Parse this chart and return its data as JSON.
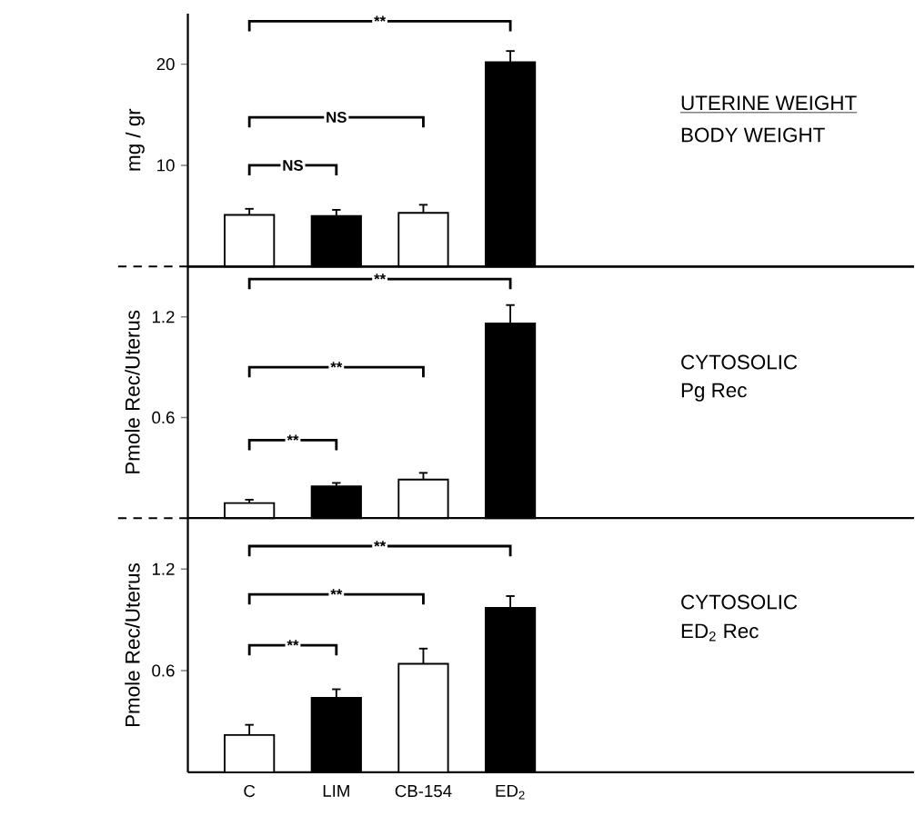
{
  "chart_data": [
    {
      "type": "bar",
      "ylabel": "mg / gr",
      "categories": [
        null,
        null,
        null,
        null
      ],
      "values": [
        5.1,
        5.0,
        5.3,
        20.2
      ],
      "errors": [
        0.6,
        0.6,
        0.8,
        1.1
      ],
      "colors": [
        "#ffffff",
        "#000000",
        "#ffffff",
        "#000000"
      ],
      "ylim": [
        0,
        25
      ],
      "yticks": [
        10,
        20
      ],
      "tick_labels": "y",
      "annotations": [
        "**",
        "NS",
        "NS",
        "UTERINE WEIGHT",
        "BODY WEIGHT"
      ]
    },
    {
      "type": "bar",
      "ylabel": "Pmole Rec/Uterus",
      "categories": [
        null,
        null,
        null,
        null
      ],
      "values": [
        0.09,
        0.19,
        0.23,
        1.16
      ],
      "errors": [
        0.02,
        0.02,
        0.04,
        0.11
      ],
      "colors": [
        "#ffffff",
        "#000000",
        "#ffffff",
        "#000000"
      ],
      "ylim": [
        0,
        1.5
      ],
      "yticks": [
        0.6,
        1.2
      ],
      "tick_labels": "y",
      "annotations": [
        "**",
        "**",
        "**",
        "CYTOSOLIC",
        "Pg Rec"
      ]
    },
    {
      "type": "bar",
      "ylabel": "Pmole Rec/Uterus",
      "categories": [
        "C",
        "LIM",
        "CB-154",
        "ED$_{2}$"
      ],
      "values": [
        0.22,
        0.44,
        0.64,
        0.97
      ],
      "errors": [
        0.06,
        0.05,
        0.09,
        0.07
      ],
      "colors": [
        "#ffffff",
        "#000000",
        "#ffffff",
        "#000000"
      ],
      "ylim": [
        0,
        1.5
      ],
      "yticks": [
        0.6,
        1.2
      ],
      "annotations": [
        "**",
        "**",
        "**",
        "CYTOSOLIC",
        "ED$_{2}$ Rec"
      ]
    }
  ]
}
